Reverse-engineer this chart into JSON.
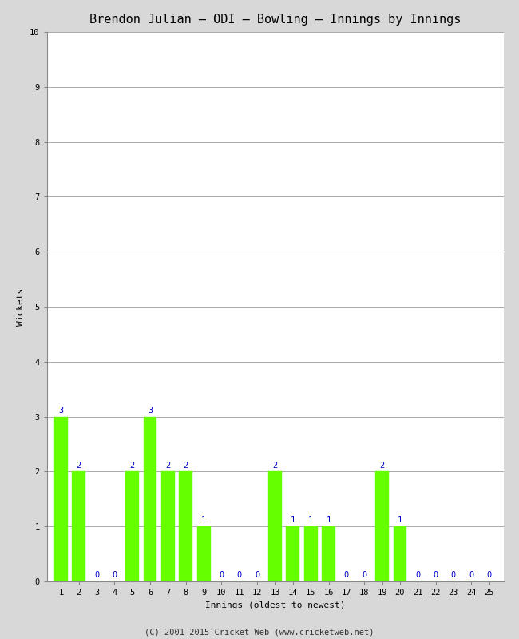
{
  "title": "Brendon Julian – ODI – Bowling – Innings by Innings",
  "xlabel": "Innings (oldest to newest)",
  "ylabel": "Wickets",
  "innings": [
    1,
    2,
    3,
    4,
    5,
    6,
    7,
    8,
    9,
    10,
    11,
    12,
    13,
    14,
    15,
    16,
    17,
    18,
    19,
    20,
    21,
    22,
    23,
    24,
    25
  ],
  "wickets": [
    3,
    2,
    0,
    0,
    2,
    3,
    2,
    2,
    1,
    0,
    0,
    0,
    2,
    1,
    1,
    1,
    0,
    0,
    2,
    1,
    0,
    0,
    0,
    0,
    0
  ],
  "ylim": [
    0,
    10
  ],
  "yticks": [
    0,
    1,
    2,
    3,
    4,
    5,
    6,
    7,
    8,
    9,
    10
  ],
  "bar_color": "#66ff00",
  "bar_edge_color": "#66ff00",
  "label_color": "#0000cc",
  "background_color": "#d8d8d8",
  "plot_bg_color": "#ffffff",
  "footer": "(C) 2001-2015 Cricket Web (www.cricketweb.net)",
  "title_fontsize": 11,
  "axis_label_fontsize": 8,
  "tick_fontsize": 7.5,
  "bar_label_fontsize": 7.5,
  "footer_fontsize": 7.5
}
